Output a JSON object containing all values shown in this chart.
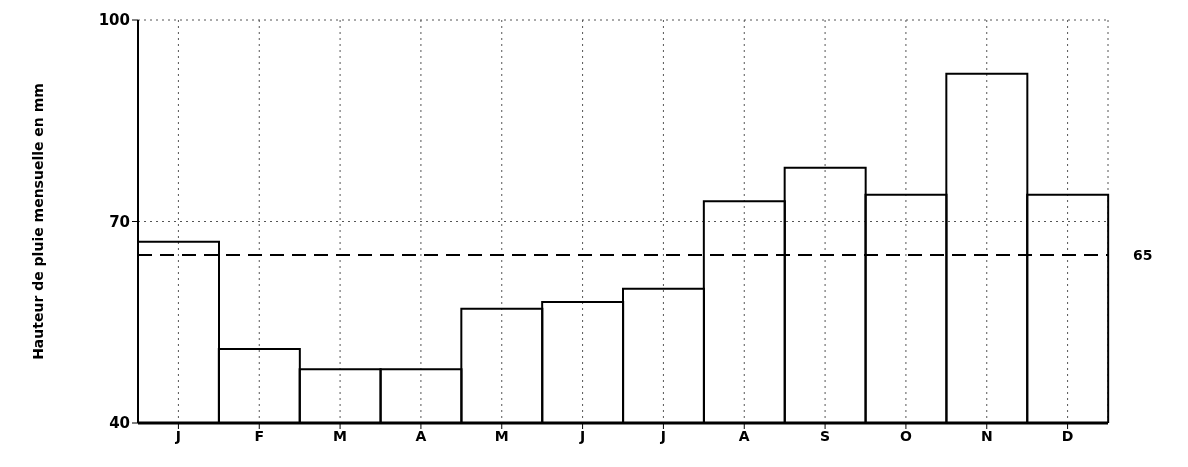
{
  "chart_data": {
    "type": "bar",
    "ylabel": "Hauteur de pluie mensuelle en mm",
    "categories": [
      "J",
      "F",
      "M",
      "A",
      "M",
      "J",
      "J",
      "A",
      "S",
      "O",
      "N",
      "D"
    ],
    "values": [
      67,
      51,
      48,
      48,
      57,
      58,
      60,
      73,
      78,
      74,
      92,
      74
    ],
    "color": "#000000",
    "ylim": [
      40,
      100
    ],
    "yticks": [
      40,
      70,
      100
    ],
    "grid": true,
    "ref_lines": [
      {
        "axis": "y",
        "value": 65,
        "label": "65",
        "line_style": "dashed",
        "color": "#000000"
      }
    ]
  }
}
